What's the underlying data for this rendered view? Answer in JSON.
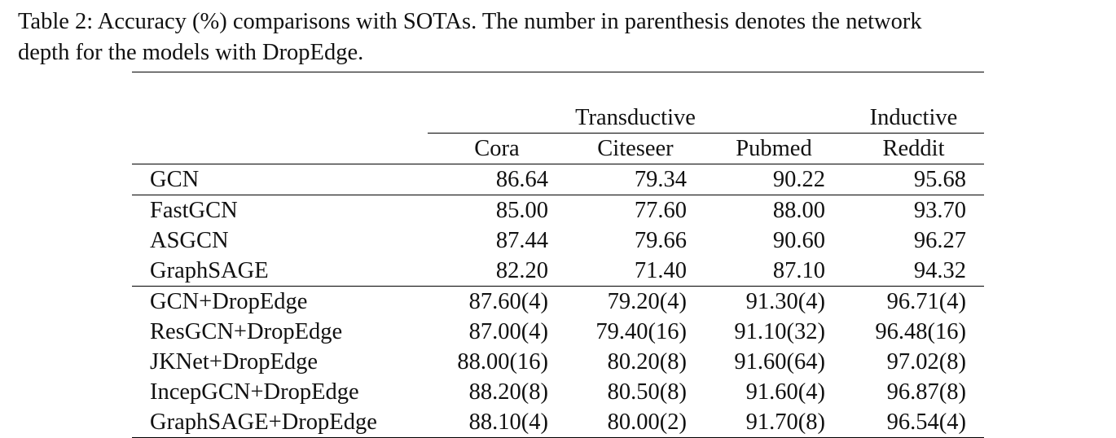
{
  "caption": {
    "line1": "Table 2: Accuracy (%) comparisons with SOTAs. The number in parenthesis denotes the network",
    "line2": "depth for the models with DropEdge."
  },
  "table": {
    "groups": [
      "Transductive",
      "Inductive"
    ],
    "datasets": [
      "Cora",
      "Citeseer",
      "Pubmed",
      "Reddit"
    ],
    "rows": [
      {
        "model": "GCN",
        "values": [
          "86.64",
          "79.34",
          "90.22",
          "95.68"
        ],
        "bold": [
          false,
          false,
          false,
          false
        ]
      },
      {
        "model": "FastGCN",
        "values": [
          "85.00",
          "77.60",
          "88.00",
          "93.70"
        ],
        "bold": [
          false,
          false,
          false,
          false
        ]
      },
      {
        "model": "ASGCN",
        "values": [
          "87.44",
          "79.66",
          "90.60",
          "96.27"
        ],
        "bold": [
          false,
          false,
          false,
          false
        ]
      },
      {
        "model": "GraphSAGE",
        "values": [
          "82.20",
          "71.40",
          "87.10",
          "94.32"
        ],
        "bold": [
          false,
          false,
          false,
          false
        ]
      },
      {
        "model": "GCN+DropEdge",
        "values": [
          "87.60(4)",
          "79.20(4)",
          "91.30(4)",
          "96.71(4)"
        ],
        "bold": [
          false,
          false,
          false,
          false
        ]
      },
      {
        "model": "ResGCN+DropEdge",
        "values": [
          "87.00(4)",
          "79.40(16)",
          "91.10(32)",
          "96.48(16)"
        ],
        "bold": [
          false,
          false,
          false,
          false
        ]
      },
      {
        "model": "JKNet+DropEdge",
        "values": [
          "88.00(16)",
          "80.20(8)",
          "91.60(64)",
          "97.02(8)"
        ],
        "bold": [
          false,
          false,
          false,
          true
        ]
      },
      {
        "model": "IncepGCN+DropEdge",
        "values": [
          "88.20(8)",
          "80.50(8)",
          "91.60(4)",
          "96.87(8)"
        ],
        "bold": [
          true,
          true,
          false,
          false
        ]
      },
      {
        "model": "GraphSAGE+DropEdge",
        "values": [
          "88.10(4)",
          "80.00(2)",
          "91.70(8)",
          "96.54(4)"
        ],
        "bold": [
          false,
          false,
          true,
          false
        ]
      }
    ]
  }
}
